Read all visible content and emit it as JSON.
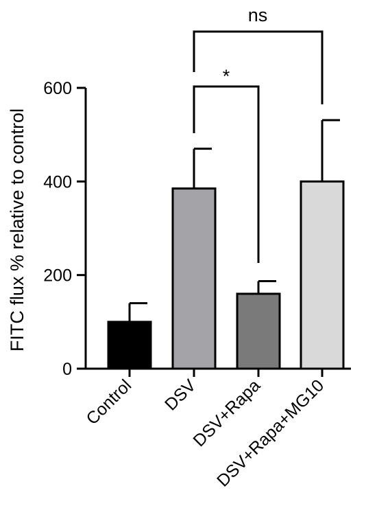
{
  "chart_data": {
    "type": "bar",
    "title": "",
    "xlabel": "",
    "ylabel": "FITC flux % relative to control",
    "ylim": [
      0,
      600
    ],
    "yticks": [
      0,
      200,
      400,
      600
    ],
    "ytick_labels": [
      "0",
      "200",
      "400",
      "600"
    ],
    "categories": [
      "Control",
      "DSV",
      "DSV+Rapa",
      "DSV+Rapa+MG10"
    ],
    "values": [
      100,
      385,
      160,
      400
    ],
    "error_upper": [
      140,
      470,
      187,
      531
    ],
    "bar_colors": [
      "#000000",
      "#a3a3a8",
      "#7a7a7a",
      "#d9d9d9"
    ],
    "grid": false,
    "comparisons": [
      {
        "from": "DSV",
        "to": "DSV+Rapa",
        "label": "*"
      },
      {
        "from": "DSV",
        "to": "DSV+Rapa+MG10",
        "label": "ns"
      }
    ]
  }
}
